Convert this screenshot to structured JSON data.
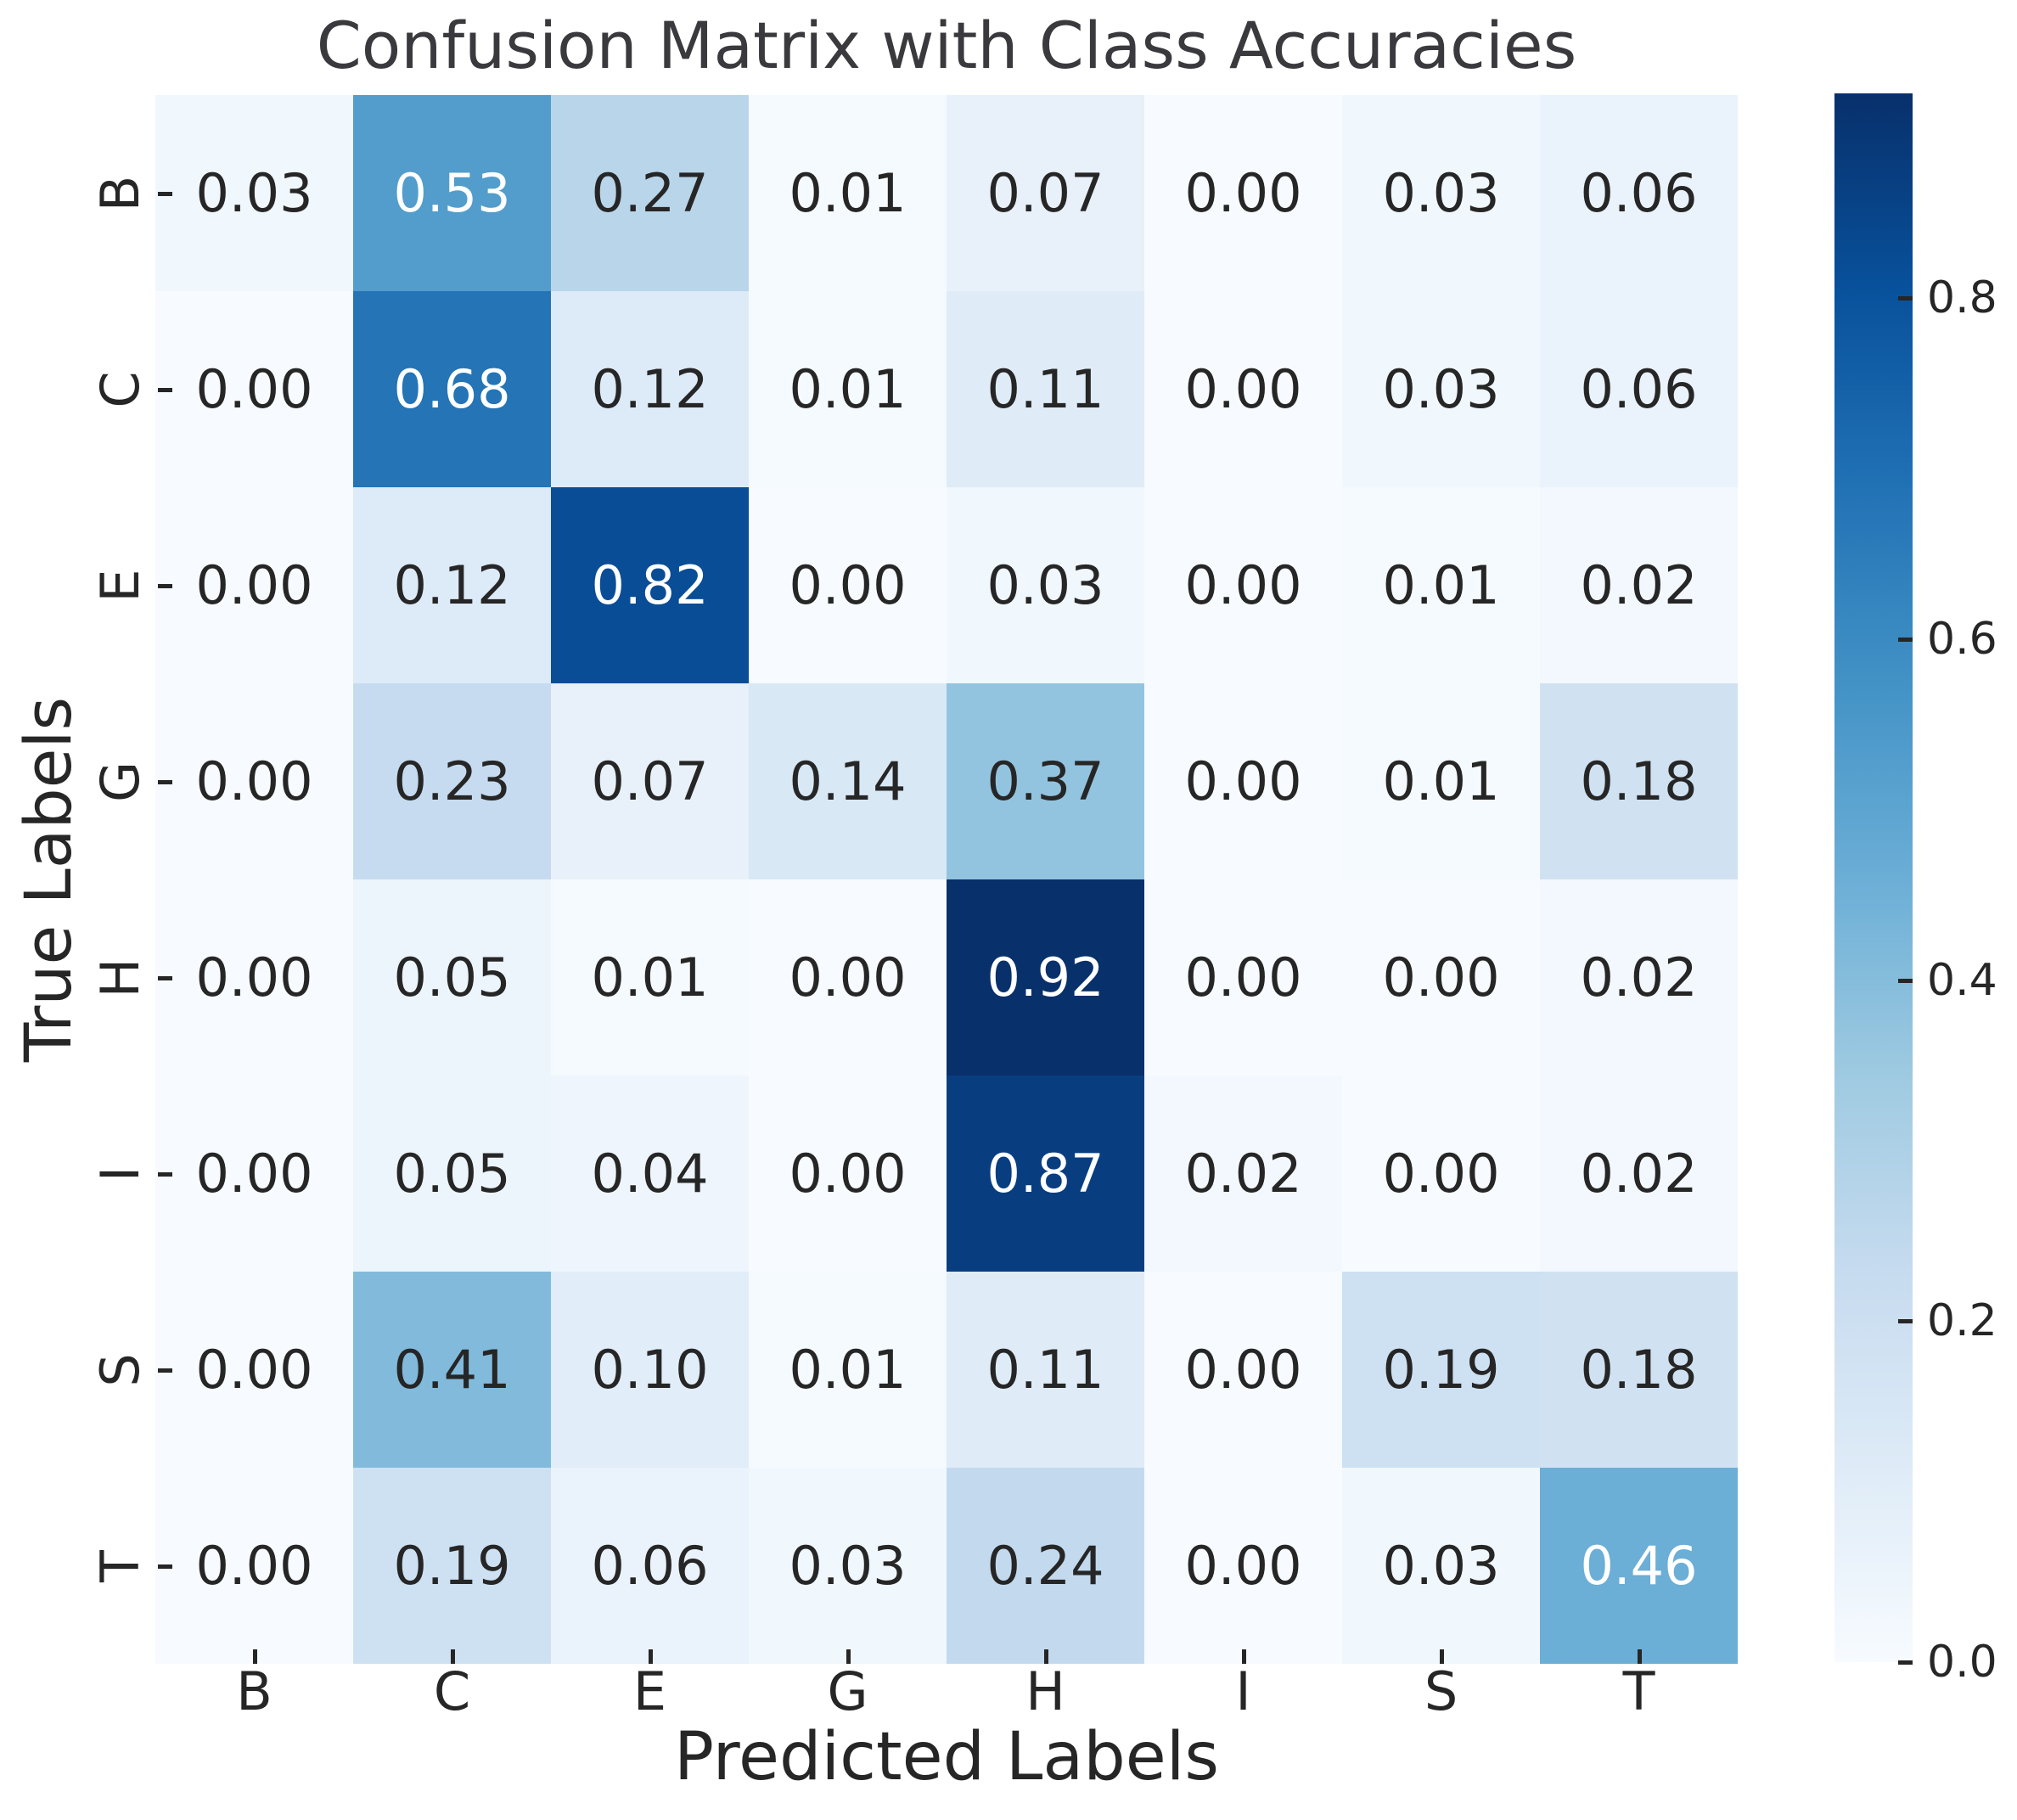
{
  "chart_data": {
    "type": "heatmap",
    "title": "Confusion Matrix with Class Accuracies",
    "xlabel": "Predicted Labels",
    "ylabel": "True Labels",
    "x_tick_labels": [
      "B",
      "C",
      "E",
      "G",
      "H",
      "I",
      "S",
      "T"
    ],
    "y_tick_labels": [
      "B",
      "C",
      "E",
      "G",
      "H",
      "I",
      "S",
      "T"
    ],
    "matrix": [
      [
        0.03,
        0.53,
        0.27,
        0.01,
        0.07,
        0.0,
        0.03,
        0.06
      ],
      [
        0.0,
        0.68,
        0.12,
        0.01,
        0.11,
        0.0,
        0.03,
        0.06
      ],
      [
        0.0,
        0.12,
        0.82,
        0.0,
        0.03,
        0.0,
        0.01,
        0.02
      ],
      [
        0.0,
        0.23,
        0.07,
        0.14,
        0.37,
        0.0,
        0.01,
        0.18
      ],
      [
        0.0,
        0.05,
        0.01,
        0.0,
        0.92,
        0.0,
        0.0,
        0.02
      ],
      [
        0.0,
        0.05,
        0.04,
        0.0,
        0.87,
        0.02,
        0.0,
        0.02
      ],
      [
        0.0,
        0.41,
        0.1,
        0.01,
        0.11,
        0.0,
        0.19,
        0.18
      ],
      [
        0.0,
        0.19,
        0.06,
        0.03,
        0.24,
        0.0,
        0.03,
        0.46
      ]
    ],
    "value_decimals": 2,
    "colormap": "Blues",
    "vmin": 0.0,
    "vmax": 0.92,
    "colorbar_ticks": [
      0.8,
      0.6,
      0.4,
      0.2,
      0.0
    ],
    "colorbar_tick_labels": [
      "0.8",
      "0.6",
      "0.4",
      "0.2",
      "0.0"
    ],
    "legend_position": "right-colorbar",
    "grid": false
  },
  "colors": {
    "background": "#ffffff",
    "annotation_dark_text": "#262626",
    "annotation_light_text": "#ffffff",
    "tick_text": "#262626",
    "title_text": "#3a3a3e",
    "blues_anchor_rgbs": [
      [
        247,
        251,
        255
      ],
      [
        222,
        235,
        247
      ],
      [
        198,
        219,
        239
      ],
      [
        158,
        202,
        225
      ],
      [
        107,
        174,
        214
      ],
      [
        66,
        146,
        198
      ],
      [
        33,
        113,
        181
      ],
      [
        8,
        81,
        156
      ],
      [
        8,
        48,
        107
      ]
    ],
    "luminance_threshold": 0.408
  }
}
